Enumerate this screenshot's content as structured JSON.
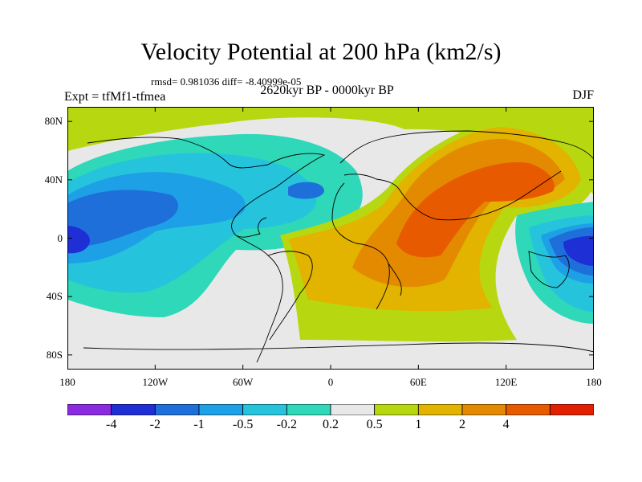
{
  "title": "Velocity Potential at 200 hPa (km2/s)",
  "stats": "rmsd= 0.981036 diff= -8.40999e-05",
  "experiment": "Expt = tfMf1-tfmea",
  "period": "2620kyr BP - 0000kyr BP",
  "season": "DJF",
  "map": {
    "projection": "cylindrical-equidistant",
    "lon_range": [
      -180,
      180
    ],
    "lat_range": [
      -90,
      90
    ],
    "lat_ticks": [
      {
        "value": 80,
        "label": "80N"
      },
      {
        "value": 40,
        "label": "40N"
      },
      {
        "value": 0,
        "label": "0"
      },
      {
        "value": -40,
        "label": "40S"
      },
      {
        "value": -80,
        "label": "80S"
      }
    ],
    "lon_ticks": [
      {
        "value": -180,
        "label": "180"
      },
      {
        "value": -120,
        "label": "120W"
      },
      {
        "value": -60,
        "label": "60W"
      },
      {
        "value": 0,
        "label": "0"
      },
      {
        "value": 60,
        "label": "60E"
      },
      {
        "value": 120,
        "label": "120E"
      },
      {
        "value": 180,
        "label": "180"
      }
    ]
  },
  "colorbar": {
    "colors": [
      "#8a2be2",
      "#1e2fd6",
      "#1e6fd9",
      "#1ea0e6",
      "#25c4dc",
      "#2ed8b8",
      "#e8e8e8",
      "#b7d810",
      "#e2b400",
      "#e48a00",
      "#e85a00",
      "#e02000"
    ],
    "labels": [
      "-4",
      "-2",
      "-1",
      "-0.5",
      "-0.2",
      "0.2",
      "0.5",
      "1",
      "2",
      "4"
    ]
  }
}
